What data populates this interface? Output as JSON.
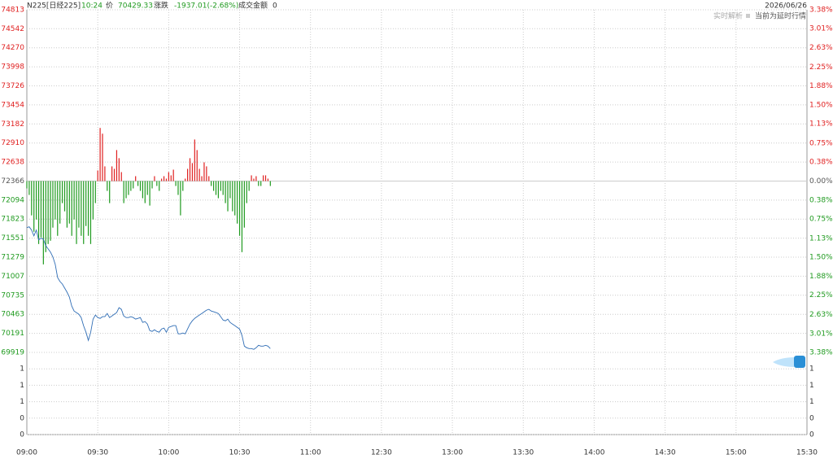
{
  "header": {
    "symbol": "N225[日经225]",
    "time": "10:24",
    "price_label": "价",
    "price": "70429.33",
    "change_label": "涨跌",
    "change": "-1937.01(-2.68%)",
    "turnover_label": "成交金额",
    "turnover": "0",
    "date": "2026/06/26",
    "analysis": "实时解析",
    "delay_note": "当前为延时行情"
  },
  "chart_data": {
    "type": "intraday",
    "x": [
      "09:00",
      "09:01",
      "09:02",
      "09:03",
      "09:04",
      "09:05",
      "09:06",
      "09:07",
      "09:08",
      "09:09",
      "09:10",
      "09:11",
      "09:12",
      "09:13",
      "09:14",
      "09:15",
      "09:16",
      "09:17",
      "09:18",
      "09:19",
      "09:20",
      "09:21",
      "09:22",
      "09:23",
      "09:24",
      "09:25",
      "09:26",
      "09:27",
      "09:28",
      "09:29",
      "09:30",
      "09:31",
      "09:32",
      "09:33",
      "09:34",
      "09:35",
      "09:36",
      "09:37",
      "09:38",
      "09:39",
      "09:40",
      "09:41",
      "09:42",
      "09:43",
      "09:44",
      "09:45",
      "09:46",
      "09:47",
      "09:48",
      "09:49",
      "09:50",
      "09:51",
      "09:52",
      "09:53",
      "09:54",
      "09:55",
      "09:56",
      "09:57",
      "09:58",
      "09:59",
      "10:00",
      "10:01",
      "10:02",
      "10:03",
      "10:04",
      "10:05",
      "10:06",
      "10:07",
      "10:08",
      "10:09",
      "10:10",
      "10:11",
      "10:12",
      "10:13",
      "10:14",
      "10:15",
      "10:16",
      "10:17",
      "10:18",
      "10:19",
      "10:20",
      "10:21",
      "10:22",
      "10:23",
      "10:24",
      "10:25",
      "10:26",
      "10:27",
      "10:28",
      "10:29",
      "10:30",
      "10:31",
      "10:32",
      "10:33",
      "10:34",
      "10:35",
      "10:36",
      "10:37",
      "10:38",
      "10:39",
      "10:40",
      "10:41",
      "10:42",
      "10:43"
    ],
    "series": [
      {
        "name": "price",
        "color": "#2f6db5",
        "values": [
          71701,
          71713,
          71666,
          71584,
          71666,
          71526,
          71549,
          71537,
          71444,
          71397,
          71351,
          71281,
          71176,
          70989,
          70931,
          70896,
          70837,
          70779,
          70709,
          70581,
          70510,
          70487,
          70464,
          70417,
          70301,
          70207,
          70091,
          70207,
          70394,
          70452,
          70417,
          70405,
          70429,
          70429,
          70475,
          70417,
          70440,
          70464,
          70487,
          70557,
          70534,
          70440,
          70417,
          70417,
          70429,
          70417,
          70394,
          70405,
          70417,
          70347,
          70359,
          70324,
          70230,
          70219,
          70242,
          70219,
          70207,
          70254,
          70265,
          70207,
          70277,
          70289,
          70301,
          70301,
          70184,
          70184,
          70196,
          70184,
          70254,
          70324,
          70370,
          70405,
          70429,
          70452,
          70475,
          70499,
          70522,
          70534,
          70510,
          70499,
          70487,
          70475,
          70429,
          70382,
          70370,
          70394,
          70347,
          70324,
          70301,
          70277,
          70254,
          70160,
          70009,
          69985,
          69974,
          69974,
          69962,
          69985,
          70020,
          70009,
          70009,
          70020,
          70009,
          69974
        ]
      },
      {
        "name": "bars",
        "up_color": "#e02020",
        "down_color": "#1f9a1f",
        "values": [
          72261,
          72168,
          71876,
          71642,
          71817,
          71467,
          71561,
          71176,
          71351,
          71467,
          71514,
          71701,
          71817,
          71584,
          71759,
          72051,
          71934,
          71701,
          71759,
          71584,
          71817,
          71467,
          71701,
          71584,
          71467,
          71724,
          71584,
          71467,
          71817,
          72051,
          72518,
          73125,
          73043,
          72576,
          72226,
          72051,
          72576,
          72541,
          72809,
          72693,
          72494,
          72051,
          72121,
          72168,
          72226,
          72261,
          72436,
          72296,
          72226,
          72121,
          72051,
          72168,
          72016,
          72261,
          72436,
          72296,
          72226,
          72401,
          72436,
          72401,
          72494,
          72448,
          72529,
          72296,
          72168,
          71876,
          72226,
          72401,
          72541,
          72693,
          72623,
          72960,
          72809,
          72541,
          72436,
          72634,
          72576,
          72436,
          72296,
          72226,
          72168,
          72121,
          72226,
          72168,
          72051,
          71934,
          72121,
          71934,
          71876,
          71759,
          71584,
          71351,
          71701,
          72051,
          72226,
          72448,
          72401,
          72436,
          72296,
          72296,
          72448,
          72448,
          72401,
          72296
        ]
      }
    ],
    "ylim": [
      69919,
      74813
    ],
    "yticks": [
      74813,
      74542,
      74270,
      73998,
      73726,
      73454,
      73182,
      72910,
      72638,
      72366,
      72094,
      71823,
      71551,
      71279,
      71007,
      70735,
      70463,
      70191,
      69919
    ],
    "y2lim": [
      -3.38,
      3.38
    ],
    "y2ticks": [
      {
        "value": 3.38,
        "label": "3.38%"
      },
      {
        "value": 3.01,
        "label": "3.01%"
      },
      {
        "value": 2.63,
        "label": "2.63%"
      },
      {
        "value": 2.25,
        "label": "2.25%"
      },
      {
        "value": 1.88,
        "label": "1.88%"
      },
      {
        "value": 1.5,
        "label": "1.50%"
      },
      {
        "value": 1.13,
        "label": "1.13%"
      },
      {
        "value": 0.75,
        "label": "0.75%"
      },
      {
        "value": 0.38,
        "label": "0.38%"
      },
      {
        "value": 0,
        "label": "0.00%"
      },
      {
        "value": -0.38,
        "label": "0.38%"
      },
      {
        "value": -0.75,
        "label": "0.75%"
      },
      {
        "value": -1.13,
        "label": "1.13%"
      },
      {
        "value": -1.5,
        "label": "1.50%"
      },
      {
        "value": -1.88,
        "label": "1.88%"
      },
      {
        "value": -2.25,
        "label": "2.25%"
      },
      {
        "value": -2.63,
        "label": "2.63%"
      },
      {
        "value": -3.01,
        "label": "3.01%"
      },
      {
        "value": -3.38,
        "label": "3.38%"
      }
    ],
    "volume_ylim": [
      0,
      1.5
    ],
    "volume_ticks": [
      {
        "value": 1.2,
        "label": "1"
      },
      {
        "value": 0.9,
        "label": "1"
      },
      {
        "value": 0.6,
        "label": "1"
      },
      {
        "value": 0.3,
        "label": "0"
      },
      0
    ],
    "xlim": [
      "09:00",
      "15:30"
    ],
    "xticks": [
      "09:00",
      "09:30",
      "10:00",
      "10:30",
      "11:00",
      "12:30",
      "13:00",
      "13:30",
      "14:00",
      "14:30",
      "15:00",
      "15:30"
    ],
    "grid": true
  }
}
